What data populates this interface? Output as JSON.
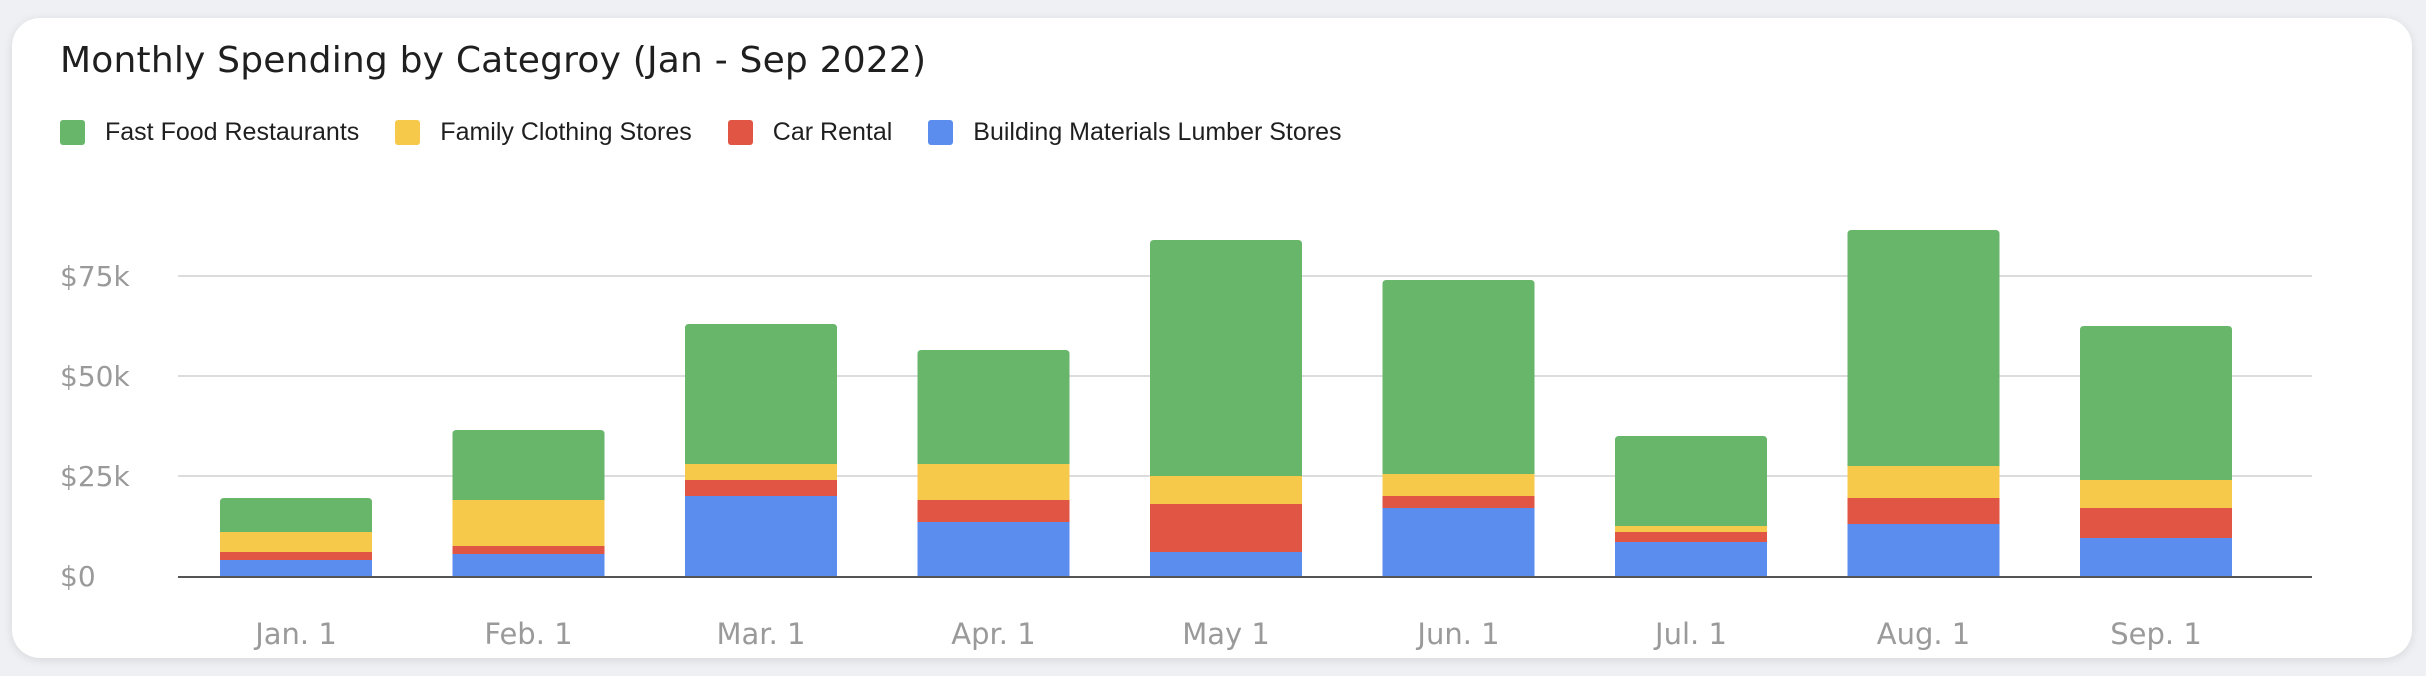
{
  "chart_data": {
    "type": "bar",
    "stacked": true,
    "title": "Monthly Spending by Categroy (Jan - Sep 2022)",
    "xlabel": "",
    "ylabel": "",
    "categories": [
      "Jan. 1",
      "Feb. 1",
      "Mar. 1",
      "Apr. 1",
      "May 1",
      "Jun. 1",
      "Jul. 1",
      "Aug. 1",
      "Sep. 1"
    ],
    "y_ticks": [
      0,
      25000,
      50000,
      75000
    ],
    "y_tick_labels": [
      "$0",
      "$25k",
      "$50k",
      "$75k"
    ],
    "ylim": [
      0,
      85000
    ],
    "grid": true,
    "legend_position": "top-left",
    "series": [
      {
        "name": "Building Materials Lumber Stores",
        "color": "#5b8def",
        "values": [
          4000,
          5500,
          20000,
          13500,
          6000,
          17000,
          8500,
          13000,
          9500
        ]
      },
      {
        "name": "Car Rental",
        "color": "#e05543",
        "values": [
          2000,
          2000,
          4000,
          5500,
          12000,
          3000,
          2500,
          6500,
          7500
        ]
      },
      {
        "name": "Family Clothing Stores",
        "color": "#f7c94b",
        "values": [
          5000,
          11500,
          4000,
          9000,
          7000,
          5500,
          1500,
          8000,
          7000
        ]
      },
      {
        "name": "Fast Food Restaurants",
        "color": "#67b66a",
        "values": [
          8500,
          17500,
          35000,
          28500,
          59000,
          48500,
          22500,
          59000,
          38500
        ]
      }
    ]
  }
}
